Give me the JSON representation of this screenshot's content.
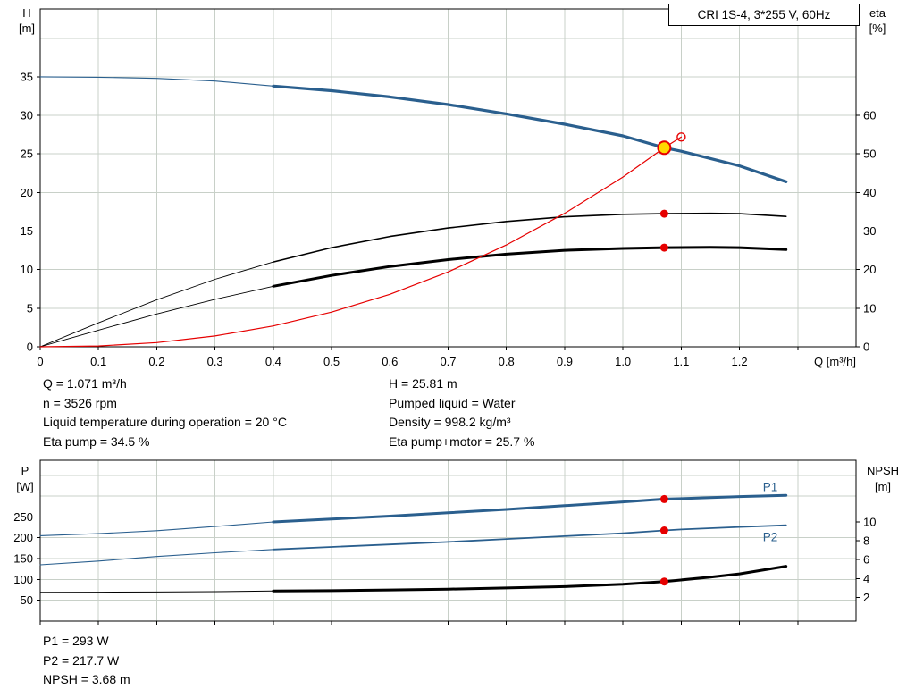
{
  "colors": {
    "curve_blue": "#2a5f8e",
    "curve_black": "#000000",
    "curve_red": "#e60000",
    "duty_point_fill": "#ffd800",
    "grid": "#c8d0c8",
    "axis": "#000000",
    "text": "#000000",
    "background": "#ffffff"
  },
  "info_top": {
    "left": [
      "Q = 1.071 m³/h",
      "n = 3526 rpm",
      "Liquid temperature during operation = 20 °C",
      "Eta pump = 34.5 %"
    ],
    "right": [
      "H = 25.81 m",
      "Pumped liquid = Water",
      "Density = 998.2 kg/m³",
      "Eta pump+motor = 25.7 %"
    ]
  },
  "info_bottom": [
    "P1 = 293 W",
    "P2 = 217.7 W",
    "NPSH = 3.68 m"
  ],
  "chart_data": [
    {
      "name": "qh-eta-chart",
      "type": "line",
      "title": "CRI 1S-4, 3*255 V, 60Hz",
      "x": {
        "label": "Q [m³/h]",
        "min": 0,
        "max": 1.4,
        "ticks": [
          {
            "v": 0,
            "l": "0"
          },
          {
            "v": 0.1,
            "l": "0.1"
          },
          {
            "v": 0.2,
            "l": "0.2"
          },
          {
            "v": 0.3,
            "l": "0.3"
          },
          {
            "v": 0.4,
            "l": "0.4"
          },
          {
            "v": 0.5,
            "l": "0.5"
          },
          {
            "v": 0.6,
            "l": "0.6"
          },
          {
            "v": 0.7,
            "l": "0.7"
          },
          {
            "v": 0.8,
            "l": "0.8"
          },
          {
            "v": 0.9,
            "l": "0.9"
          },
          {
            "v": 1,
            "l": "1.0"
          },
          {
            "v": 1.1,
            "l": "1.1"
          },
          {
            "v": 1.2,
            "l": "1.2"
          },
          {
            "v": 1.3,
            "l": ""
          }
        ]
      },
      "y_left": {
        "label_lines": [
          "H",
          "[m]"
        ],
        "min": 0,
        "max": 43.8,
        "ticks": [
          0,
          5,
          10,
          15,
          20,
          25,
          30,
          35
        ],
        "grid": [
          5,
          10,
          15,
          20,
          25,
          30,
          35,
          40
        ]
      },
      "y_right": {
        "label_lines": [
          "eta",
          "[%]"
        ],
        "min": 0,
        "max": 87.6,
        "ticks": [
          0,
          10,
          20,
          30,
          40,
          50,
          60
        ]
      },
      "series": [
        {
          "name": "head-curve-lead",
          "axis": "left",
          "color": "blue",
          "width": 1.1,
          "points": [
            [
              0,
              35
            ],
            [
              0.1,
              34.95
            ],
            [
              0.2,
              34.8
            ],
            [
              0.3,
              34.45
            ],
            [
              0.4,
              33.8
            ]
          ]
        },
        {
          "name": "head-curve",
          "axis": "left",
          "color": "blue",
          "width": 3.2,
          "points": [
            [
              0.4,
              33.8
            ],
            [
              0.5,
              33.2
            ],
            [
              0.6,
              32.4
            ],
            [
              0.7,
              31.4
            ],
            [
              0.8,
              30.2
            ],
            [
              0.9,
              28.85
            ],
            [
              1,
              27.35
            ],
            [
              1.071,
              25.81
            ],
            [
              1.1,
              25.35
            ],
            [
              1.2,
              23.45
            ],
            [
              1.28,
              21.4
            ]
          ]
        },
        {
          "name": "eta-pump-lead",
          "axis": "right",
          "color": "black",
          "width": 0.9,
          "points": [
            [
              0,
              0
            ],
            [
              0.1,
              6.2
            ],
            [
              0.2,
              12.2
            ],
            [
              0.3,
              17.5
            ],
            [
              0.4,
              22
            ]
          ]
        },
        {
          "name": "eta-pump-curve",
          "axis": "right",
          "color": "black",
          "width": 1.6,
          "points": [
            [
              0.4,
              22
            ],
            [
              0.5,
              25.7
            ],
            [
              0.6,
              28.6
            ],
            [
              0.7,
              30.8
            ],
            [
              0.8,
              32.5
            ],
            [
              0.9,
              33.7
            ],
            [
              1,
              34.35
            ],
            [
              1.071,
              34.5
            ],
            [
              1.15,
              34.6
            ],
            [
              1.2,
              34.5
            ],
            [
              1.28,
              33.8
            ]
          ]
        },
        {
          "name": "eta-pump-motor-lead",
          "axis": "right",
          "color": "black",
          "width": 0.9,
          "points": [
            [
              0,
              0
            ],
            [
              0.1,
              4.3
            ],
            [
              0.2,
              8.5
            ],
            [
              0.3,
              12.3
            ],
            [
              0.4,
              15.7
            ]
          ]
        },
        {
          "name": "eta-pump-motor-curve",
          "axis": "right",
          "color": "black",
          "width": 3,
          "points": [
            [
              0.4,
              15.7
            ],
            [
              0.5,
              18.5
            ],
            [
              0.6,
              20.8
            ],
            [
              0.7,
              22.6
            ],
            [
              0.8,
              24
            ],
            [
              0.9,
              25
            ],
            [
              1,
              25.5
            ],
            [
              1.071,
              25.7
            ],
            [
              1.15,
              25.8
            ],
            [
              1.2,
              25.7
            ],
            [
              1.28,
              25.2
            ]
          ]
        },
        {
          "name": "system-curve",
          "axis": "left",
          "color": "red",
          "width": 1.2,
          "points": [
            [
              0,
              0
            ],
            [
              0.1,
              0.1
            ],
            [
              0.2,
              0.55
            ],
            [
              0.3,
              1.4
            ],
            [
              0.4,
              2.7
            ],
            [
              0.5,
              4.5
            ],
            [
              0.6,
              6.8
            ],
            [
              0.7,
              9.7
            ],
            [
              0.8,
              13.2
            ],
            [
              0.9,
              17.3
            ],
            [
              1,
              22
            ],
            [
              1.071,
              25.81
            ],
            [
              1.1,
              27.2
            ]
          ]
        }
      ],
      "markers": [
        {
          "name": "duty-point",
          "axis": "left",
          "x": 1.071,
          "y": 25.81,
          "r": 7,
          "fill": "duty",
          "stroke": "red",
          "stroke_width": 2,
          "interactable": true
        },
        {
          "name": "requested-duty-point",
          "axis": "left",
          "x": 1.1,
          "y": 27.2,
          "r": 4.5,
          "fill": "none",
          "stroke": "red",
          "stroke_width": 1.4,
          "interactable": false
        },
        {
          "name": "eta-pump-point",
          "axis": "right",
          "x": 1.071,
          "y": 34.5,
          "r": 4.5,
          "fill": "red",
          "stroke": "none",
          "stroke_width": 0,
          "interactable": false
        },
        {
          "name": "eta-pump-motor-point",
          "axis": "right",
          "x": 1.071,
          "y": 25.7,
          "r": 4.5,
          "fill": "red",
          "stroke": "none",
          "stroke_width": 0,
          "interactable": false
        }
      ],
      "labels": []
    },
    {
      "name": "power-npsh-chart",
      "type": "line",
      "title": "",
      "x": {
        "label": "",
        "min": 0,
        "max": 1.4,
        "ticks": [
          {
            "v": 0
          },
          {
            "v": 0.1
          },
          {
            "v": 0.2
          },
          {
            "v": 0.3
          },
          {
            "v": 0.4
          },
          {
            "v": 0.5
          },
          {
            "v": 0.6
          },
          {
            "v": 0.7
          },
          {
            "v": 0.8
          },
          {
            "v": 0.9
          },
          {
            "v": 1
          },
          {
            "v": 1.1
          },
          {
            "v": 1.2
          },
          {
            "v": 1.3
          }
        ]
      },
      "y_left": {
        "label_lines": [
          "P",
          "[W]"
        ],
        "min": 0,
        "max": 386,
        "ticks": [
          50,
          100,
          150,
          200,
          250
        ],
        "grid": [
          50,
          100,
          150,
          200,
          250,
          300,
          350
        ]
      },
      "y_right": {
        "label_lines": [
          "NPSH",
          "[m]"
        ],
        "min": -0.5,
        "max": 16.5,
        "ticks": [
          2,
          4,
          6,
          8,
          10
        ]
      },
      "series": [
        {
          "name": "p1-lead",
          "axis": "left",
          "color": "blue",
          "width": 1.1,
          "points": [
            [
              0,
              205
            ],
            [
              0.1,
              210
            ],
            [
              0.2,
              217
            ],
            [
              0.3,
              227
            ],
            [
              0.4,
              238
            ]
          ]
        },
        {
          "name": "p1-curve",
          "axis": "left",
          "color": "blue",
          "width": 3,
          "points": [
            [
              0.4,
              238
            ],
            [
              0.5,
              245
            ],
            [
              0.6,
              252
            ],
            [
              0.7,
              260
            ],
            [
              0.8,
              268
            ],
            [
              0.9,
              277
            ],
            [
              1,
              286
            ],
            [
              1.071,
              293
            ],
            [
              1.1,
              294
            ],
            [
              1.2,
              299
            ],
            [
              1.28,
              302
            ]
          ]
        },
        {
          "name": "p2-lead",
          "axis": "left",
          "color": "blue",
          "width": 1.1,
          "points": [
            [
              0,
              135
            ],
            [
              0.1,
              144
            ],
            [
              0.2,
              155
            ],
            [
              0.3,
              164
            ],
            [
              0.4,
              172
            ]
          ]
        },
        {
          "name": "p2-curve",
          "axis": "left",
          "color": "blue",
          "width": 1.8,
          "points": [
            [
              0.4,
              172
            ],
            [
              0.5,
              178
            ],
            [
              0.6,
              184
            ],
            [
              0.7,
              190
            ],
            [
              0.8,
              197
            ],
            [
              0.9,
              204
            ],
            [
              1,
              211
            ],
            [
              1.071,
              217.7
            ],
            [
              1.1,
              220
            ],
            [
              1.2,
              226
            ],
            [
              1.28,
              230
            ]
          ]
        },
        {
          "name": "npsh-lead",
          "axis": "right",
          "color": "black",
          "width": 1,
          "points": [
            [
              0,
              2.55
            ],
            [
              0.1,
              2.56
            ],
            [
              0.2,
              2.58
            ],
            [
              0.3,
              2.62
            ],
            [
              0.4,
              2.68
            ]
          ]
        },
        {
          "name": "npsh-curve",
          "axis": "right",
          "color": "black",
          "width": 3,
          "points": [
            [
              0.4,
              2.68
            ],
            [
              0.5,
              2.72
            ],
            [
              0.6,
              2.8
            ],
            [
              0.7,
              2.88
            ],
            [
              0.8,
              3
            ],
            [
              0.9,
              3.15
            ],
            [
              1,
              3.4
            ],
            [
              1.071,
              3.68
            ],
            [
              1.15,
              4.15
            ],
            [
              1.2,
              4.5
            ],
            [
              1.28,
              5.3
            ]
          ]
        }
      ],
      "markers": [
        {
          "name": "p1-point",
          "axis": "left",
          "x": 1.071,
          "y": 293,
          "r": 4.5,
          "fill": "red",
          "stroke": "none",
          "stroke_width": 0,
          "interactable": false
        },
        {
          "name": "p2-point",
          "axis": "left",
          "x": 1.071,
          "y": 217.7,
          "r": 4.5,
          "fill": "red",
          "stroke": "none",
          "stroke_width": 0,
          "interactable": false
        },
        {
          "name": "npsh-point",
          "axis": "right",
          "x": 1.071,
          "y": 3.68,
          "r": 4.5,
          "fill": "red",
          "stroke": "none",
          "stroke_width": 0,
          "interactable": false
        }
      ],
      "labels": [
        {
          "name": "p1-label",
          "text": "P1",
          "axis": "left",
          "x": 1.24,
          "y": 312,
          "color": "blue"
        },
        {
          "name": "p2-label",
          "text": "P2",
          "axis": "left",
          "x": 1.24,
          "y": 192,
          "color": "blue"
        }
      ]
    }
  ]
}
